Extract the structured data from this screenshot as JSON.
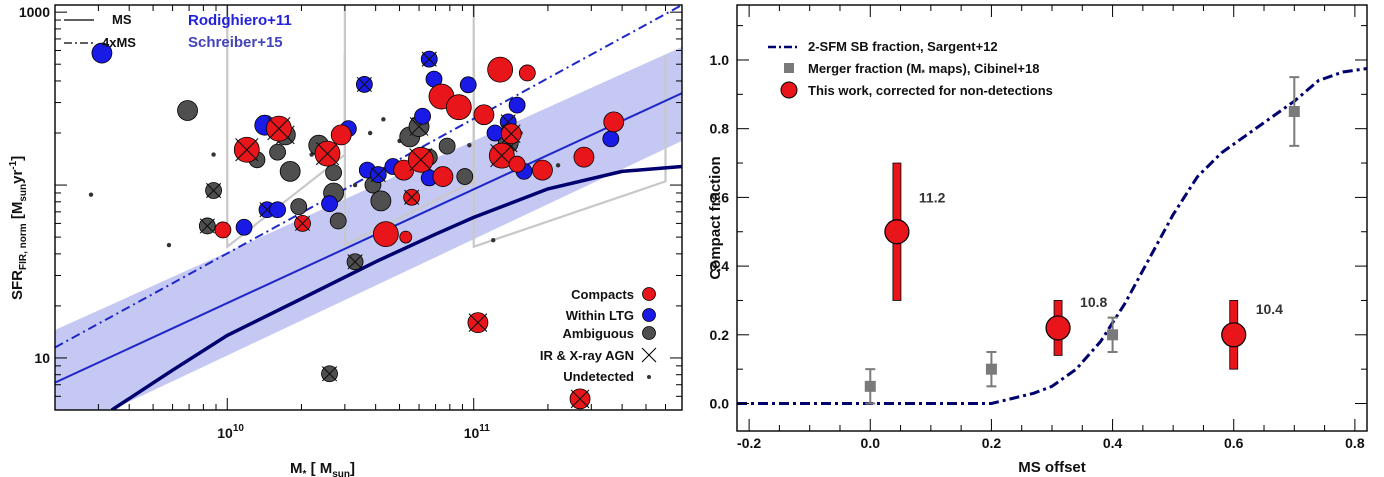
{
  "colors": {
    "compact": "#e8151b",
    "within_ltg": "#1a1ae6",
    "ambiguous": "#4f4f4f",
    "ms_line": "#1e28c8",
    "sargent": "#00006e",
    "band": "#c6c8f4",
    "grey_box": "#c8c8c8",
    "merger": "#7a7a7a"
  },
  "chart_data": [
    {
      "type": "scatter",
      "x_scale": "log",
      "y_scale": "log",
      "xlim": [
        2000000000,
        700000000000
      ],
      "ylim": [
        5,
        1100
      ],
      "xlabel": "M_* [ M_sun]",
      "ylabel": "SFR_FIR, norm [M_sun yr^-1]",
      "x_ticks": [
        {
          "value": 10000000000,
          "base": "10",
          "exp": "10"
        },
        {
          "value": 100000000000,
          "base": "10",
          "exp": "11"
        }
      ],
      "y_ticks": [
        {
          "value": 10,
          "label": "10"
        },
        {
          "value": 1000,
          "label": "1000"
        }
      ],
      "legend_lines": {
        "position": "top-left",
        "items": [
          {
            "label": "MS",
            "style": "solid"
          },
          {
            "label": "4xMS",
            "style": "dash-dot"
          }
        ]
      },
      "references": {
        "position": "top-left",
        "items": [
          {
            "label": "Rodighiero+11"
          },
          {
            "label": "Schreiber+15"
          }
        ]
      },
      "legend_symbols": {
        "position": "bottom-right",
        "items": [
          {
            "label": "Compacts",
            "marker": "red-circle"
          },
          {
            "label": "Within LTG",
            "marker": "blue-circle"
          },
          {
            "label": "Ambiguous",
            "marker": "grey-circle"
          },
          {
            "label": "IR & X-ray AGN",
            "marker": "cross"
          },
          {
            "label": "Undetected",
            "marker": "dot"
          }
        ]
      },
      "ms_relation": [
        {
          "x": 2000000000,
          "y": 7.2
        },
        {
          "x": 700000000000,
          "y": 340
        }
      ],
      "four_ms_relation": [
        {
          "x": 2000000000,
          "y": 11.5
        },
        {
          "x": 700000000000,
          "y": 1100
        }
      ],
      "band_bounds": [
        {
          "x": 2000000000,
          "lower": 3.5,
          "upper": 14.5
        },
        {
          "x": 700000000000,
          "lower": 180,
          "upper": 630
        }
      ],
      "sargent_curve": [
        {
          "x": 3400000000,
          "y": 5
        },
        {
          "x": 6000000000,
          "y": 8.5
        },
        {
          "x": 10000000000,
          "y": 13.5
        },
        {
          "x": 20000000000,
          "y": 22
        },
        {
          "x": 40000000000,
          "y": 36
        },
        {
          "x": 70000000000,
          "y": 52
        },
        {
          "x": 100000000000,
          "y": 65
        },
        {
          "x": 200000000000,
          "y": 95
        },
        {
          "x": 400000000000,
          "y": 120
        },
        {
          "x": 700000000000,
          "y": 128
        }
      ],
      "selection_boxes": [
        {
          "x": [
            10000000000,
            30000000000
          ],
          "y_low": [
            44,
            150
          ],
          "y_high": [
            1100,
            1100
          ],
          "y_top_right": 580
        },
        {
          "x": [
            30000000000,
            100000000000
          ],
          "y_low": [
            45,
            105
          ],
          "y_high": [
            1100,
            1100
          ],
          "y_top_right": 530
        },
        {
          "x": [
            100000000000,
            600000000000
          ],
          "y_low": [
            44,
            105
          ],
          "y_high": [
            1100,
            1100
          ],
          "y_top_right": 560
        }
      ],
      "points": [
        {
          "m": 3100000000.0,
          "sfr": 580,
          "cat": "within",
          "size": "l"
        },
        {
          "m": 6900000000.0,
          "sfr": 270,
          "cat": "amb",
          "size": "l"
        },
        {
          "m": 8800000000.0,
          "sfr": 93,
          "cat": "amb",
          "size": "m",
          "agn": true
        },
        {
          "m": 8300000000.0,
          "sfr": 58,
          "cat": "amb",
          "size": "m",
          "agn": true
        },
        {
          "m": 9600000000.0,
          "sfr": 55,
          "cat": "compact",
          "size": "m"
        },
        {
          "m": 11700000000.0,
          "sfr": 57,
          "cat": "within",
          "size": "m"
        },
        {
          "m": 12000000000.0,
          "sfr": 160,
          "cat": "compact",
          "size": "xl",
          "agn": true
        },
        {
          "m": 13200000000.0,
          "sfr": 140,
          "cat": "amb",
          "size": "m"
        },
        {
          "m": 14200000000.0,
          "sfr": 222,
          "cat": "within",
          "size": "l"
        },
        {
          "m": 16200000000.0,
          "sfr": 212,
          "cat": "compact",
          "size": "xl",
          "agn": true
        },
        {
          "m": 17200000000.0,
          "sfr": 195,
          "cat": "amb",
          "size": "l",
          "agn": true
        },
        {
          "m": 16000000000.0,
          "sfr": 155,
          "cat": "amb",
          "size": "m"
        },
        {
          "m": 18000000000.0,
          "sfr": 120,
          "cat": "amb",
          "size": "l"
        },
        {
          "m": 14500000000.0,
          "sfr": 72,
          "cat": "within",
          "size": "m",
          "agn": true
        },
        {
          "m": 16000000000.0,
          "sfr": 72,
          "cat": "within",
          "size": "m"
        },
        {
          "m": 19500000000.0,
          "sfr": 75,
          "cat": "amb",
          "size": "m"
        },
        {
          "m": 20200000000.0,
          "sfr": 60,
          "cat": "compact",
          "size": "m",
          "agn": true
        },
        {
          "m": 23500000000.0,
          "sfr": 170,
          "cat": "amb",
          "size": "l"
        },
        {
          "m": 25500000000.0,
          "sfr": 152,
          "cat": "compact",
          "size": "xl",
          "agn": true
        },
        {
          "m": 27000000000.0,
          "sfr": 118,
          "cat": "amb",
          "size": "m"
        },
        {
          "m": 26000000000.0,
          "sfr": 78,
          "cat": "within",
          "size": "m"
        },
        {
          "m": 28200000000.0,
          "sfr": 62,
          "cat": "amb",
          "size": "m"
        },
        {
          "m": 27000000000.0,
          "sfr": 90,
          "cat": "amb",
          "size": "l"
        },
        {
          "m": 29000000000.0,
          "sfr": 195,
          "cat": "compact",
          "size": "l"
        },
        {
          "m": 31000000000.0,
          "sfr": 212,
          "cat": "within",
          "size": "m"
        },
        {
          "m": 33000000000.0,
          "sfr": 36,
          "cat": "amb",
          "size": "m",
          "agn": true
        },
        {
          "m": 36000000000.0,
          "sfr": 382,
          "cat": "within",
          "size": "m",
          "agn": true
        },
        {
          "m": 37000000000.0,
          "sfr": 122,
          "cat": "within",
          "size": "m"
        },
        {
          "m": 39000000000.0,
          "sfr": 100,
          "cat": "amb",
          "size": "m"
        },
        {
          "m": 42000000000.0,
          "sfr": 81,
          "cat": "amb",
          "size": "l"
        },
        {
          "m": 41000000000.0,
          "sfr": 115,
          "cat": "within",
          "size": "m",
          "agn": true
        },
        {
          "m": 44000000000.0,
          "sfr": 52,
          "cat": "compact",
          "size": "xl"
        },
        {
          "m": 47000000000.0,
          "sfr": 128,
          "cat": "within",
          "size": "m"
        },
        {
          "m": 52000000000.0,
          "sfr": 122,
          "cat": "compact",
          "size": "l"
        },
        {
          "m": 53000000000.0,
          "sfr": 50,
          "cat": "compact",
          "size": "s"
        },
        {
          "m": 56000000000.0,
          "sfr": 85,
          "cat": "compact",
          "size": "m",
          "agn": true
        },
        {
          "m": 55000000000.0,
          "sfr": 190,
          "cat": "amb",
          "size": "l"
        },
        {
          "m": 60000000000.0,
          "sfr": 218,
          "cat": "amb",
          "size": "l",
          "agn": true
        },
        {
          "m": 62000000000.0,
          "sfr": 250,
          "cat": "within",
          "size": "m"
        },
        {
          "m": 66000000000.0,
          "sfr": 145,
          "cat": "amb",
          "size": "m"
        },
        {
          "m": 61000000000.0,
          "sfr": 140,
          "cat": "compact",
          "size": "xl",
          "agn": true
        },
        {
          "m": 66000000000.0,
          "sfr": 535,
          "cat": "within",
          "size": "m",
          "agn": true
        },
        {
          "m": 69000000000.0,
          "sfr": 410,
          "cat": "within",
          "size": "m"
        },
        {
          "m": 74000000000.0,
          "sfr": 325,
          "cat": "compact",
          "size": "xl"
        },
        {
          "m": 75000000000.0,
          "sfr": 112,
          "cat": "compact",
          "size": "l"
        },
        {
          "m": 78000000000.0,
          "sfr": 168,
          "cat": "amb",
          "size": "m"
        },
        {
          "m": 87000000000.0,
          "sfr": 282,
          "cat": "compact",
          "size": "xl"
        },
        {
          "m": 92000000000.0,
          "sfr": 112,
          "cat": "amb",
          "size": "m"
        },
        {
          "m": 95000000000.0,
          "sfr": 380,
          "cat": "within",
          "size": "m"
        },
        {
          "m": 104000000000.0,
          "sfr": 16,
          "cat": "compact",
          "size": "l",
          "agn": true
        },
        {
          "m": 110000000000.0,
          "sfr": 255,
          "cat": "compact",
          "size": "l"
        },
        {
          "m": 122000000000.0,
          "sfr": 200,
          "cat": "within",
          "size": "m"
        },
        {
          "m": 128000000000.0,
          "sfr": 465,
          "cat": "compact",
          "size": "xl"
        },
        {
          "m": 130000000000.0,
          "sfr": 148,
          "cat": "compact",
          "size": "xl",
          "agn": true
        },
        {
          "m": 138000000000.0,
          "sfr": 175,
          "cat": "amb",
          "size": "l",
          "agn": true
        },
        {
          "m": 142000000000.0,
          "sfr": 198,
          "cat": "compact",
          "size": "l",
          "agn": true
        },
        {
          "m": 138000000000.0,
          "sfr": 232,
          "cat": "within",
          "size": "m",
          "agn": true
        },
        {
          "m": 150000000000.0,
          "sfr": 290,
          "cat": "within",
          "size": "m"
        },
        {
          "m": 150000000000.0,
          "sfr": 132,
          "cat": "compact",
          "size": "m"
        },
        {
          "m": 160000000000.0,
          "sfr": 120,
          "cat": "within",
          "size": "m"
        },
        {
          "m": 165000000000.0,
          "sfr": 445,
          "cat": "compact",
          "size": "m"
        },
        {
          "m": 190000000000.0,
          "sfr": 122,
          "cat": "compact",
          "size": "l"
        },
        {
          "m": 280000000000.0,
          "sfr": 145,
          "cat": "compact",
          "size": "l"
        },
        {
          "m": 370000000000.0,
          "sfr": 232,
          "cat": "compact",
          "size": "l"
        },
        {
          "m": 360000000000.0,
          "sfr": 185,
          "cat": "within",
          "size": "m"
        },
        {
          "m": 270000000000.0,
          "sfr": 5.8,
          "cat": "compact",
          "size": "l",
          "agn": true
        },
        {
          "m": 26000000000.0,
          "sfr": 8.1,
          "cat": "amb",
          "size": "m",
          "agn": true
        },
        {
          "m": 66000000000.0,
          "sfr": 110,
          "cat": "within",
          "size": "m"
        }
      ],
      "undetected": [
        {
          "m": 2800000000.0,
          "sfr": 88
        },
        {
          "m": 5800000000.0,
          "sfr": 45
        },
        {
          "m": 19500000000.0,
          "sfr": 60
        },
        {
          "m": 18200000000.0,
          "sfr": 195
        },
        {
          "m": 22000000000.0,
          "sfr": 150
        },
        {
          "m": 33000000000.0,
          "sfr": 100
        },
        {
          "m": 43000000000.0,
          "sfr": 240
        },
        {
          "m": 57000000000.0,
          "sfr": 240
        },
        {
          "m": 96000000000.0,
          "sfr": 170
        },
        {
          "m": 120000000000.0,
          "sfr": 48
        },
        {
          "m": 125000000000.0,
          "sfr": 145
        },
        {
          "m": 145000000000.0,
          "sfr": 140
        },
        {
          "m": 220000000000.0,
          "sfr": 130
        },
        {
          "m": 8800000000.0,
          "sfr": 150
        },
        {
          "m": 38000000000.0,
          "sfr": 200
        },
        {
          "m": 155000000000.0,
          "sfr": 200
        },
        {
          "m": 50000000000.0,
          "sfr": 180
        }
      ]
    },
    {
      "type": "line",
      "xlim": [
        -0.22,
        0.82
      ],
      "ylim": [
        -0.08,
        1.16
      ],
      "xlabel": "MS offset",
      "ylabel": "Compact fraction",
      "x_ticks": [
        "-0.2",
        "0.0",
        "0.2",
        "0.4",
        "0.6",
        "0.8"
      ],
      "y_ticks": [
        "0.0",
        "0.2",
        "0.4",
        "0.6",
        "0.8",
        "1.0"
      ],
      "legend": {
        "position": "top-left",
        "items": [
          {
            "label": "2-SFM SB fraction, Sargent+12",
            "marker": "dash-dot"
          },
          {
            "label": "Merger fraction (M_* maps), Cibinel+18",
            "marker": "grey-square"
          },
          {
            "label": "This work, corrected for non-detections",
            "marker": "red-circle"
          }
        ]
      },
      "sargent_curve": {
        "x": [
          -0.22,
          0.2,
          0.27,
          0.3,
          0.34,
          0.38,
          0.42,
          0.46,
          0.5,
          0.54,
          0.58,
          0.62,
          0.66,
          0.7,
          0.74,
          0.78,
          0.82
        ],
        "y": [
          0.0,
          0.0,
          0.03,
          0.05,
          0.1,
          0.18,
          0.29,
          0.42,
          0.55,
          0.66,
          0.73,
          0.78,
          0.83,
          0.88,
          0.94,
          0.965,
          0.975
        ]
      },
      "merger_fraction": [
        {
          "x": 0.0,
          "y": 0.05,
          "err": 0.05
        },
        {
          "x": 0.2,
          "y": 0.1,
          "err": 0.05
        },
        {
          "x": 0.4,
          "y": 0.2,
          "err": 0.05
        },
        {
          "x": 0.7,
          "y": 0.85,
          "err": 0.1
        }
      ],
      "this_work": [
        {
          "x": 0.044,
          "y": 0.5,
          "lo": 0.3,
          "hi": 0.7,
          "label": "11.2"
        },
        {
          "x": 0.31,
          "y": 0.22,
          "lo": 0.14,
          "hi": 0.3,
          "label": "10.8"
        },
        {
          "x": 0.6,
          "y": 0.2,
          "lo": 0.1,
          "hi": 0.3,
          "label": "10.4"
        }
      ]
    }
  ]
}
